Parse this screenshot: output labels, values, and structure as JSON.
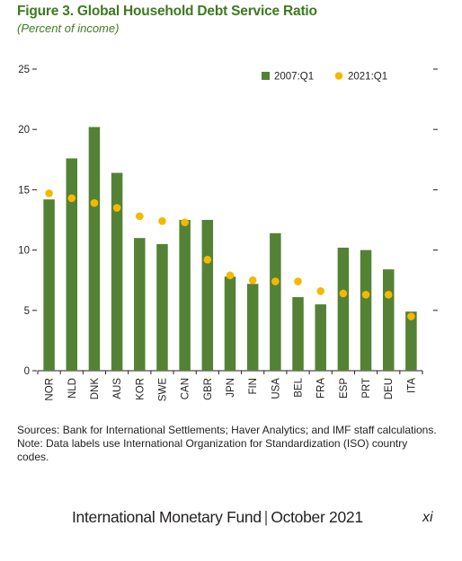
{
  "chart_data": {
    "type": "bar",
    "title": "Figure 3. Global Household Debt Service Ratio",
    "subtitle": "(Percent of income)",
    "categories": [
      "NOR",
      "NLD",
      "DNK",
      "AUS",
      "KOR",
      "SWE",
      "CAN",
      "GBR",
      "JPN",
      "FIN",
      "USA",
      "BEL",
      "FRA",
      "ESP",
      "PRT",
      "DEU",
      "ITA"
    ],
    "series": [
      {
        "name": "2007:Q1",
        "kind": "bar",
        "color": "#548235",
        "values": [
          14.2,
          17.6,
          20.2,
          16.4,
          11.0,
          10.5,
          12.5,
          12.5,
          7.8,
          7.2,
          11.4,
          6.1,
          5.5,
          10.2,
          10.0,
          8.4,
          4.9
        ]
      },
      {
        "name": "2021:Q1",
        "kind": "dot",
        "color": "#f5b800",
        "values": [
          14.7,
          14.3,
          13.9,
          13.5,
          12.8,
          12.4,
          12.3,
          9.2,
          7.9,
          7.5,
          7.4,
          7.4,
          6.6,
          6.4,
          6.3,
          6.3,
          4.5
        ]
      }
    ],
    "yticks": [
      0,
      5,
      10,
      15,
      20,
      25
    ],
    "ylim": [
      0,
      25
    ],
    "legend_position": "top-right",
    "grid": false
  },
  "notes": {
    "sources": "Sources: Bank for International Settlements; Haver Analytics; and IMF staff calculations.",
    "note": "Note: Data labels use International Organization for Standardization (ISO) country codes."
  },
  "footer": {
    "organization": "International Monetary Fund",
    "separator": "|",
    "date": "October 2021",
    "page_number": "xi"
  }
}
